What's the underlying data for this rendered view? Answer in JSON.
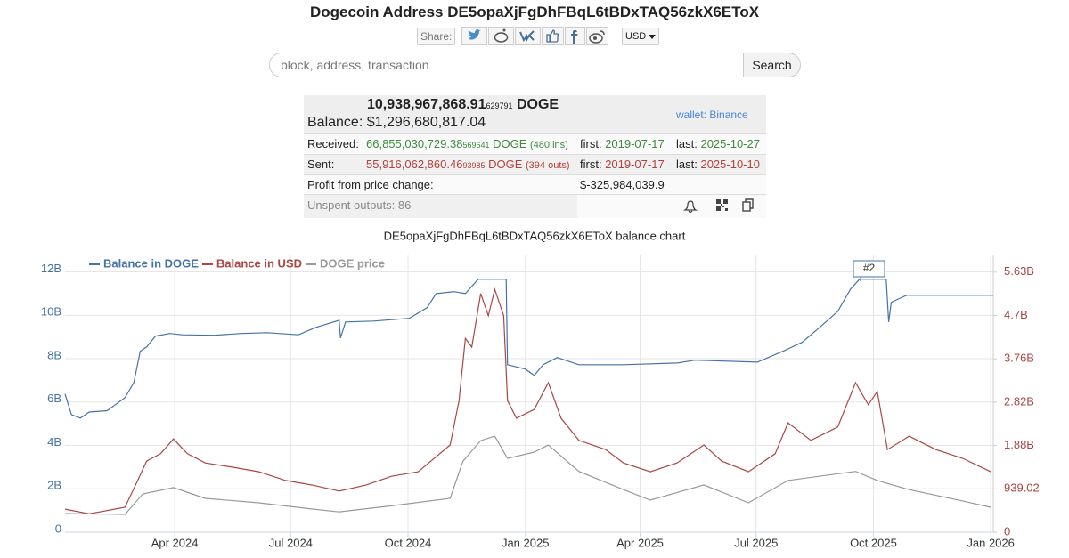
{
  "header": {
    "title": "Dogecoin Address DE5opaXjFgDhFBqL6tBDxTAQ56zkX6EToX",
    "share_label": "Share:",
    "currency": "USD",
    "search_placeholder": "block, address, transaction",
    "search_button": "Search"
  },
  "summary": {
    "balance_doge": "10,938,967,868.91",
    "balance_doge_fraction": "629791",
    "balance_unit": "DOGE",
    "balance_label": "Balance:",
    "balance_usd": "$1,296,680,817.04",
    "wallet": "wallet: Binance",
    "received": {
      "label": "Received:",
      "amount": "66,855,030,729.38",
      "fraction": "569641",
      "unit": "DOGE",
      "count": "(480 ins)",
      "first_label": "first:",
      "first": "2019-07-17",
      "last_label": "last:",
      "last": "2025-10-27"
    },
    "sent": {
      "label": "Sent:",
      "amount": "55,916,062,860.46",
      "fraction": "93985",
      "unit": "DOGE",
      "count": "(394 outs)",
      "first_label": "first:",
      "first": "2019-07-17",
      "last_label": "last:",
      "last": "2025-10-10"
    },
    "profit": {
      "label": "Profit from price change:",
      "value": "$-325,984,039.9"
    },
    "unspent": "Unspent outputs: 86"
  },
  "chart_data": {
    "type": "line",
    "title": "DE5opaXjFgDhFBqL6tBDxTAQ56zkX6EToX balance chart",
    "grid": true,
    "xlim": [
      "2024-01-06",
      "2026-01-03"
    ],
    "xticks": [
      {
        "value": "2024-04-01",
        "label": "Apr 2024"
      },
      {
        "value": "2024-07-01",
        "label": "Jul 2024"
      },
      {
        "value": "2024-10-01",
        "label": "Oct 2024"
      },
      {
        "value": "2025-01-01",
        "label": "Jan 2025"
      },
      {
        "value": "2025-04-01",
        "label": "Apr 2025"
      },
      {
        "value": "2025-07-01",
        "label": "Jul 2025"
      },
      {
        "value": "2025-10-01",
        "label": "Oct 2025"
      },
      {
        "value": "2026-01-01",
        "label": "Jan 2026"
      }
    ],
    "ylim": [
      0,
      12800000000
    ],
    "yticks": [
      0,
      {
        "value": 2000000000,
        "label": "2B"
      },
      {
        "value": 4000000000,
        "label": "4B"
      },
      {
        "value": 6000000000,
        "label": "6B"
      },
      {
        "value": 8000000000,
        "label": "8B"
      },
      {
        "value": 10000000000,
        "label": "10B"
      },
      {
        "value": 12000000000,
        "label": "12B"
      }
    ],
    "y2lim": [
      0,
      6016000000
    ],
    "y2ticks": [
      0,
      {
        "value": 939020000,
        "label": "939.02"
      },
      {
        "value": 1878040000,
        "label": "1.88B"
      },
      {
        "value": 2817060000,
        "label": "2.82B"
      },
      {
        "value": 3756080000,
        "label": "3.76B"
      },
      {
        "value": 4695100000,
        "label": "4.7B"
      },
      {
        "value": 5634120000,
        "label": "5.63B"
      }
    ],
    "y3lim": [
      0,
      1.37
    ],
    "annotations": [
      "#2"
    ],
    "series": [
      {
        "name": "Balance in DOGE",
        "color": "#4572a7",
        "axis": "y",
        "x": [
          "2024-01-06",
          "2024-01-11",
          "2024-01-18",
          "2024-01-25",
          "2024-02-08",
          "2024-02-22",
          "2024-02-29",
          "2024-03-05",
          "2024-03-10",
          "2024-03-17",
          "2024-03-28",
          "2024-04-07",
          "2024-05-02",
          "2024-05-23",
          "2024-06-13",
          "2024-07-07",
          "2024-07-21",
          "2024-08-08",
          "2024-08-09",
          "2024-08-13",
          "2024-09-04",
          "2024-10-02",
          "2024-10-16",
          "2024-10-23",
          "2024-11-06",
          "2024-11-15",
          "2024-11-25",
          "2024-12-17",
          "2024-12-18",
          "2025-01-01",
          "2025-01-08",
          "2025-01-15",
          "2025-01-26",
          "2025-02-12",
          "2025-03-19",
          "2025-04-30",
          "2025-05-14",
          "2025-07-02",
          "2025-07-22",
          "2025-08-06",
          "2025-08-20",
          "2025-09-03",
          "2025-09-13",
          "2025-09-20",
          "2025-10-11",
          "2025-10-13",
          "2025-10-15",
          "2025-10-27",
          "2026-01-03"
        ],
        "values": [
          6370000000,
          5420000000,
          5260000000,
          5540000000,
          5600000000,
          6200000000,
          6900000000,
          8340000000,
          8540000000,
          9040000000,
          9160000000,
          9100000000,
          9080000000,
          9160000000,
          9200000000,
          9100000000,
          9450000000,
          9770000000,
          8950000000,
          9690000000,
          9730000000,
          9860000000,
          10350000000,
          11000000000,
          11090000000,
          11000000000,
          11660000000,
          11660000000,
          7720000000,
          7520000000,
          7230000000,
          7720000000,
          8050000000,
          7720000000,
          7720000000,
          7800000000,
          7930000000,
          7840000000,
          8340000000,
          8750000000,
          9450000000,
          10180000000,
          11200000000,
          11660000000,
          11660000000,
          9690000000,
          10600000000,
          10920000000,
          10920000000
        ]
      },
      {
        "name": "Balance in USD",
        "color": "#aa4643",
        "axis": "y2",
        "x": [
          "2024-01-06",
          "2024-01-25",
          "2024-02-22",
          "2024-03-03",
          "2024-03-10",
          "2024-03-21",
          "2024-03-31",
          "2024-04-11",
          "2024-04-25",
          "2024-05-16",
          "2024-06-06",
          "2024-06-27",
          "2024-07-18",
          "2024-08-08",
          "2024-08-29",
          "2024-09-18",
          "2024-10-09",
          "2024-11-03",
          "2024-11-10",
          "2024-11-15",
          "2024-11-20",
          "2024-11-27",
          "2024-12-03",
          "2024-12-08",
          "2024-12-15",
          "2024-12-18",
          "2024-12-25",
          "2025-01-08",
          "2025-01-19",
          "2025-01-29",
          "2025-02-12",
          "2025-03-05",
          "2025-03-19",
          "2025-04-09",
          "2025-04-30",
          "2025-05-21",
          "2025-06-04",
          "2025-06-25",
          "2025-07-16",
          "2025-07-26",
          "2025-08-13",
          "2025-09-03",
          "2025-09-17",
          "2025-09-27",
          "2025-10-04",
          "2025-10-12",
          "2025-10-29",
          "2025-11-19",
          "2025-12-10",
          "2026-01-01"
        ],
        "values": [
          500000000,
          400000000,
          540000000,
          1120000000,
          1540000000,
          1700000000,
          2020000000,
          1700000000,
          1500000000,
          1410000000,
          1310000000,
          1120000000,
          1020000000,
          890000000,
          1020000000,
          1210000000,
          1310000000,
          1890000000,
          2850000000,
          4200000000,
          4010000000,
          5170000000,
          4690000000,
          5260000000,
          4690000000,
          2850000000,
          2470000000,
          2660000000,
          3240000000,
          2470000000,
          1990000000,
          1790000000,
          1500000000,
          1310000000,
          1500000000,
          1890000000,
          1540000000,
          1310000000,
          1700000000,
          2370000000,
          1990000000,
          2280000000,
          3240000000,
          2760000000,
          3050000000,
          1790000000,
          2080000000,
          1790000000,
          1600000000,
          1310000000
        ]
      },
      {
        "name": "DOGE price",
        "color": "#999999",
        "axis": "y3",
        "x": [
          "2024-01-06",
          "2024-02-22",
          "2024-03-07",
          "2024-03-31",
          "2024-04-25",
          "2024-06-06",
          "2024-07-18",
          "2024-08-08",
          "2024-09-18",
          "2024-11-03",
          "2024-11-13",
          "2024-11-27",
          "2024-12-08",
          "2024-12-18",
          "2025-01-08",
          "2025-01-19",
          "2025-02-12",
          "2025-03-19",
          "2025-04-09",
          "2025-05-21",
          "2025-06-25",
          "2025-07-26",
          "2025-09-17",
          "2025-10-04",
          "2025-10-29",
          "2025-12-10",
          "2026-01-01"
        ],
        "values": [
          0.092,
          0.088,
          0.189,
          0.22,
          0.167,
          0.145,
          0.114,
          0.1,
          0.13,
          0.167,
          0.35,
          0.452,
          0.474,
          0.364,
          0.395,
          0.43,
          0.3,
          0.21,
          0.158,
          0.233,
          0.145,
          0.255,
          0.3,
          0.255,
          0.21,
          0.154,
          0.123
        ]
      }
    ]
  }
}
